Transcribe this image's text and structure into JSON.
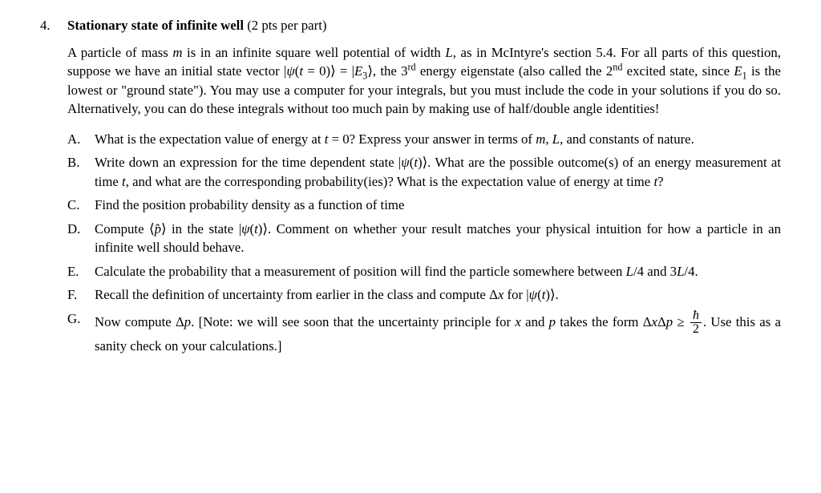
{
  "question_number": "4.",
  "title": "Stationary state of infinite well",
  "points": " (2 pts per part)",
  "intro_html": "A particle of mass <span class=\"mi\">m</span> is in an infinite square well potential of width <span class=\"mi\">L</span>, as in McIntyre's section 5.4. For all parts of this question, suppose we have an initial state vector |<span class=\"mi\">ψ</span>(<span class=\"mi\">t</span> = 0)⟩ = |<span class=\"mi\">E</span><span class=\"sub\">3</span>⟩, the 3<span class=\"sup\">rd</span> energy eigenstate (also called the 2<span class=\"sup\">nd</span> excited state, since <span class=\"mi\">E</span><span class=\"sub\">1</span> is the lowest or \"ground state\"). You may use a computer for your integrals, but you must include the code in your solutions if you do so. Alternatively, you can do these integrals without too much pain by making use of half/double angle identities!",
  "parts": [
    {
      "label": "A.",
      "body_html": "What is the expectation value of energy at <span class=\"mi\">t</span> = 0? Express your answer in terms of <span class=\"mi\">m</span>, <span class=\"mi\">L</span>, and constants of nature."
    },
    {
      "label": "B.",
      "body_html": "Write down an expression for the time dependent state |<span class=\"mi\">ψ</span>(<span class=\"mi\">t</span>)⟩. What are the possible outcome(s) of an energy measurement at time <span class=\"mi\">t</span>, and what are the corresponding probability(ies)? What is the expectation value of energy at time <span class=\"mi\">t</span>?"
    },
    {
      "label": "C.",
      "body_html": "Find the position probability density as a function of time"
    },
    {
      "label": "D.",
      "body_html": "Compute ⟨<span class=\"mi\">p̂</span>⟩ in the state |<span class=\"mi\">ψ</span>(<span class=\"mi\">t</span>)⟩. Comment on whether your result matches your physical intuition for how a particle in an infinite well should behave."
    },
    {
      "label": "E.",
      "body_html": "Calculate the probability that a measurement of position will find the particle somewhere between <span class=\"mi\">L</span>/4 and 3<span class=\"mi\">L</span>/4."
    },
    {
      "label": "F.",
      "body_html": "Recall the definition of uncertainty from earlier in the class and compute Δ<span class=\"mi\">x</span> for |<span class=\"mi\">ψ</span>(<span class=\"mi\">t</span>)⟩."
    },
    {
      "label": "G.",
      "body_html": "Now compute Δ<span class=\"mi\">p</span>. [Note: we will see soon that the uncertainty principle for <span class=\"mi\">x</span> and <span class=\"mi\">p</span> takes the form Δ<span class=\"mi\">x</span>Δ<span class=\"mi\">p</span> ≥ <span class=\"frac\"><span class=\"num\"><span class=\"mi\">ħ</span></span><span class=\"den\">2</span></span>. Use this as a sanity check on your calculations.]"
    }
  ]
}
